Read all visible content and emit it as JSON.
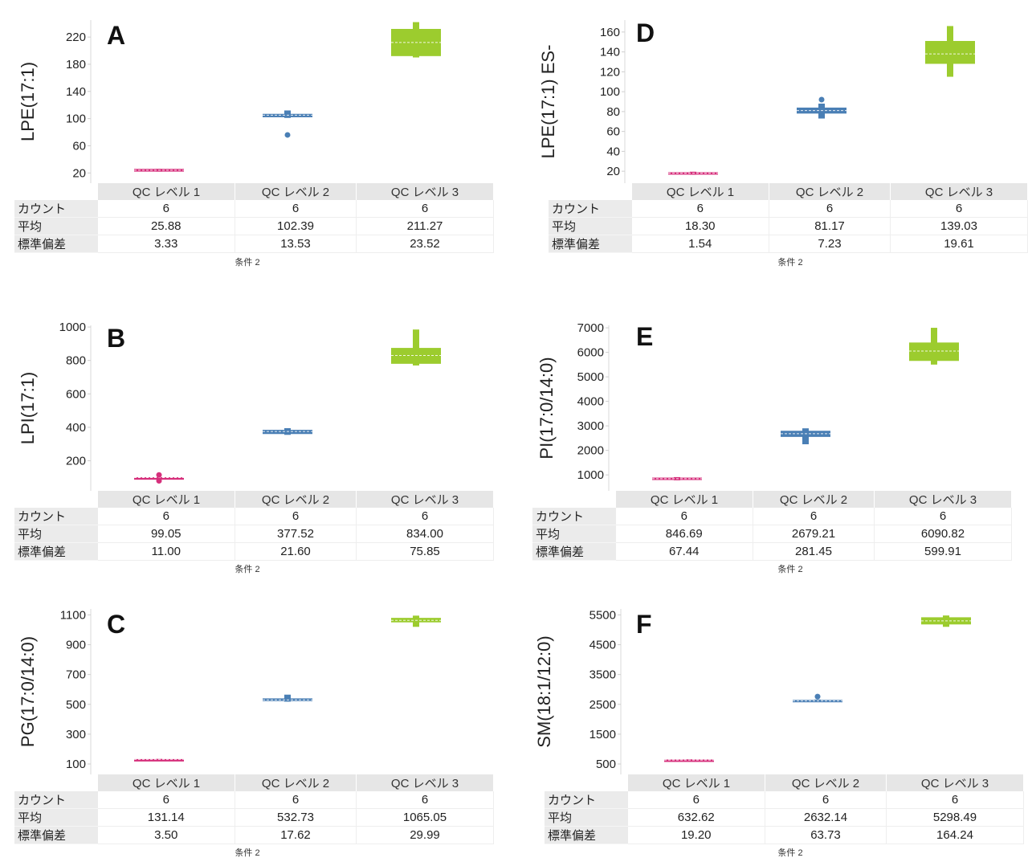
{
  "chart_data": [
    {
      "type": "box",
      "letter": "A",
      "ylabel": "LPE(17:1)",
      "ticks": [
        20,
        60,
        100,
        140,
        180,
        220
      ],
      "ylim": [
        5,
        245
      ],
      "categories": [
        "QC レベル 1",
        "QC レベル 2",
        "QC レベル 3"
      ],
      "boxes": [
        {
          "q1": 22,
          "median": 24,
          "q3": 26,
          "whisker_low": 22,
          "whisker_high": 26,
          "outliers": []
        },
        {
          "q1": 102,
          "median": 105,
          "q3": 107,
          "whisker_low": 101,
          "whisker_high": 112,
          "outliers": [
            76
          ]
        },
        {
          "q1": 192,
          "median": 212,
          "q3": 232,
          "whisker_low": 190,
          "whisker_high": 242,
          "outliers": []
        }
      ],
      "stats": {
        "count_label": "カウント",
        "mean_label": "平均",
        "sd_label": "標準偏差",
        "count": [
          "6",
          "6",
          "6"
        ],
        "mean": [
          "25.88",
          "102.39",
          "211.27"
        ],
        "sd": [
          "3.33",
          "13.53",
          "23.52"
        ]
      },
      "footer": "条件 2"
    },
    {
      "type": "box",
      "letter": "B",
      "ylabel": "LPI(17:1)",
      "ticks": [
        200,
        400,
        600,
        800,
        1000
      ],
      "ylim": [
        20,
        1010
      ],
      "categories": [
        "QC レベル 1",
        "QC レベル 2",
        "QC レベル 3"
      ],
      "boxes": [
        {
          "q1": 97,
          "median": 99,
          "q3": 101,
          "whisker_low": 97,
          "whisker_high": 101,
          "outliers": [
            80,
            115
          ]
        },
        {
          "q1": 360,
          "median": 375,
          "q3": 385,
          "whisker_low": 355,
          "whisker_high": 395,
          "outliers": []
        },
        {
          "q1": 780,
          "median": 830,
          "q3": 875,
          "whisker_low": 770,
          "whisker_high": 985,
          "outliers": []
        }
      ],
      "stats": {
        "count_label": "カウント",
        "mean_label": "平均",
        "sd_label": "標準偏差",
        "count": [
          "6",
          "6",
          "6"
        ],
        "mean": [
          "99.05",
          "377.52",
          "834.00"
        ],
        "sd": [
          "11.00",
          "21.60",
          "75.85"
        ]
      },
      "footer": "条件 2"
    },
    {
      "type": "box",
      "letter": "C",
      "ylabel": "PG(17:0/14:0)",
      "ticks": [
        100,
        300,
        500,
        700,
        900,
        1100
      ],
      "ylim": [
        30,
        1140
      ],
      "categories": [
        "QC レベル 1",
        "QC レベル 2",
        "QC レベル 3"
      ],
      "boxes": [
        {
          "q1": 129,
          "median": 131,
          "q3": 133,
          "whisker_low": 128,
          "whisker_high": 134,
          "outliers": []
        },
        {
          "q1": 522,
          "median": 530,
          "q3": 540,
          "whisker_low": 518,
          "whisker_high": 565,
          "outliers": []
        },
        {
          "q1": 1050,
          "median": 1063,
          "q3": 1080,
          "whisker_low": 1020,
          "whisker_high": 1095,
          "outliers": []
        }
      ],
      "stats": {
        "count_label": "カウント",
        "mean_label": "平均",
        "sd_label": "標準偏差",
        "count": [
          "6",
          "6",
          "6"
        ],
        "mean": [
          "131.14",
          "532.73",
          "1065.05"
        ],
        "sd": [
          "3.50",
          "17.62",
          "29.99"
        ]
      },
      "footer": "条件 2"
    },
    {
      "type": "box",
      "letter": "D",
      "ylabel": "LPE(17:1) ES-",
      "ticks": [
        20,
        40,
        60,
        80,
        100,
        120,
        140,
        160
      ],
      "ylim": [
        8,
        172
      ],
      "categories": [
        "QC レベル 1",
        "QC レベル 2",
        "QC レベル 3"
      ],
      "boxes": [
        {
          "q1": 17,
          "median": 18,
          "q3": 19,
          "whisker_low": 16.5,
          "whisker_high": 19.5,
          "outliers": []
        },
        {
          "q1": 78,
          "median": 81,
          "q3": 84,
          "whisker_low": 73,
          "whisker_high": 88,
          "outliers": [
            92
          ]
        },
        {
          "q1": 128,
          "median": 138,
          "q3": 151,
          "whisker_low": 115,
          "whisker_high": 166,
          "outliers": []
        }
      ],
      "stats": {
        "count_label": "カウント",
        "mean_label": "平均",
        "sd_label": "標準偏差",
        "count": [
          "6",
          "6",
          "6"
        ],
        "mean": [
          "18.30",
          "81.17",
          "139.03"
        ],
        "sd": [
          "1.54",
          "7.23",
          "19.61"
        ]
      },
      "footer": "条件 2"
    },
    {
      "type": "box",
      "letter": "E",
      "ylabel": "PI(17:0/14:0)",
      "ticks": [
        1000,
        2000,
        3000,
        4000,
        5000,
        6000,
        7000
      ],
      "ylim": [
        350,
        7100
      ],
      "categories": [
        "QC レベル 1",
        "QC レベル 2",
        "QC レベル 3"
      ],
      "boxes": [
        {
          "q1": 800,
          "median": 845,
          "q3": 890,
          "whisker_low": 780,
          "whisker_high": 910,
          "outliers": []
        },
        {
          "q1": 2550,
          "median": 2680,
          "q3": 2800,
          "whisker_low": 2250,
          "whisker_high": 2900,
          "outliers": []
        },
        {
          "q1": 5650,
          "median": 6050,
          "q3": 6400,
          "whisker_low": 5500,
          "whisker_high": 7000,
          "outliers": []
        }
      ],
      "stats": {
        "count_label": "カウント",
        "mean_label": "平均",
        "sd_label": "標準偏差",
        "count": [
          "6",
          "6",
          "6"
        ],
        "mean": [
          "846.69",
          "2679.21",
          "6090.82"
        ],
        "sd": [
          "67.44",
          "281.45",
          "599.91"
        ]
      },
      "footer": "条件 2"
    },
    {
      "type": "box",
      "letter": "F",
      "ylabel": "SM(18:1/12:0)",
      "ticks": [
        500,
        1500,
        2500,
        3500,
        4500,
        5500
      ],
      "ylim": [
        150,
        5700
      ],
      "categories": [
        "QC レベル 1",
        "QC レベル 2",
        "QC レベル 3"
      ],
      "boxes": [
        {
          "q1": 615,
          "median": 630,
          "q3": 650,
          "whisker_low": 605,
          "whisker_high": 655,
          "outliers": []
        },
        {
          "q1": 2590,
          "median": 2620,
          "q3": 2650,
          "whisker_low": 2580,
          "whisker_high": 2660,
          "outliers": [
            2760
          ]
        },
        {
          "q1": 5180,
          "median": 5300,
          "q3": 5420,
          "whisker_low": 5100,
          "whisker_high": 5480,
          "outliers": []
        }
      ],
      "stats": {
        "count_label": "カウント",
        "mean_label": "平均",
        "sd_label": "標準偏差",
        "count": [
          "6",
          "6",
          "6"
        ],
        "mean": [
          "632.62",
          "2632.14",
          "5298.49"
        ],
        "sd": [
          "19.20",
          "63.73",
          "164.24"
        ]
      },
      "footer": "条件 2"
    }
  ],
  "colors": {
    "level1": "#d6307c",
    "level2": "#4a7fb5",
    "level3": "#9ccc2e"
  }
}
